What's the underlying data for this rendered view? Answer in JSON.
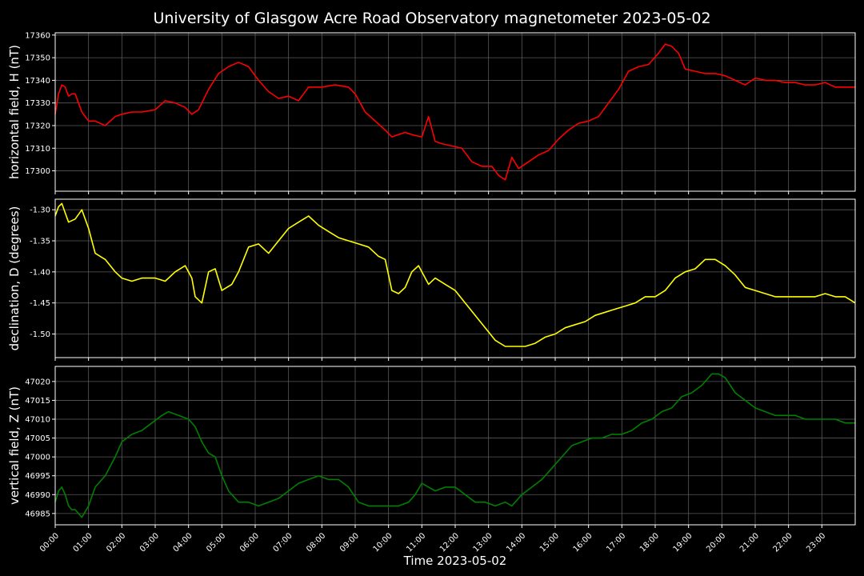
{
  "chart_data": {
    "type": "line",
    "title": "University of Glasgow Acre Road Observatory magnetometer 2023-05-02",
    "xlabel": "Time 2023-05-02",
    "x_unit": "hours",
    "x_tick_labels": [
      "00:00",
      "01:00",
      "02:00",
      "03:00",
      "04:00",
      "05:00",
      "06:00",
      "07:00",
      "08:00",
      "09:00",
      "10:00",
      "11:00",
      "12:00",
      "13:00",
      "14:00",
      "15:00",
      "16:00",
      "17:00",
      "18:00",
      "19:00",
      "20:00",
      "21:00",
      "22:00",
      "23:00"
    ],
    "xlim": [
      0,
      24
    ],
    "grid": true,
    "panels": [
      {
        "ylabel": "horizontal field, H (nT)",
        "color": "#ff0000",
        "ylim": [
          17291,
          17361
        ],
        "yticks": [
          17300,
          17310,
          17320,
          17330,
          17340,
          17350,
          17360
        ],
        "x": [
          0.0,
          0.1,
          0.2,
          0.3,
          0.4,
          0.5,
          0.6,
          0.8,
          1.0,
          1.2,
          1.5,
          1.8,
          2.0,
          2.3,
          2.6,
          3.0,
          3.3,
          3.6,
          3.9,
          4.1,
          4.3,
          4.6,
          4.9,
          5.2,
          5.5,
          5.8,
          6.1,
          6.4,
          6.7,
          7.0,
          7.3,
          7.6,
          8.0,
          8.4,
          8.8,
          9.0,
          9.3,
          9.6,
          9.9,
          10.1,
          10.3,
          10.5,
          10.7,
          11.0,
          11.2,
          11.4,
          11.6,
          11.9,
          12.2,
          12.5,
          12.8,
          13.1,
          13.3,
          13.5,
          13.7,
          13.9,
          14.2,
          14.5,
          14.8,
          15.1,
          15.4,
          15.7,
          16.0,
          16.3,
          16.6,
          16.9,
          17.2,
          17.5,
          17.8,
          18.1,
          18.3,
          18.5,
          18.7,
          18.9,
          19.2,
          19.5,
          19.8,
          20.1,
          20.4,
          20.7,
          21.0,
          21.3,
          21.6,
          21.9,
          22.2,
          22.5,
          22.8,
          23.1,
          23.4,
          23.7,
          24.0
        ],
        "values": [
          17325,
          17334,
          17338,
          17337,
          17333,
          17334,
          17334,
          17326,
          17322,
          17322,
          17320,
          17324,
          17325,
          17326,
          17326,
          17327,
          17331,
          17330,
          17328,
          17325,
          17327,
          17336,
          17343,
          17346,
          17348,
          17346,
          17340,
          17335,
          17332,
          17333,
          17331,
          17337,
          17337,
          17338,
          17337,
          17334,
          17326,
          17322,
          17318,
          17315,
          17316,
          17317,
          17316,
          17315,
          17324,
          17313,
          17312,
          17311,
          17310,
          17304,
          17302,
          17302,
          17298,
          17296,
          17306,
          17301,
          17304,
          17307,
          17309,
          17314,
          17318,
          17321,
          17322,
          17324,
          17330,
          17336,
          17344,
          17346,
          17347,
          17352,
          17356,
          17355,
          17352,
          17345,
          17344,
          17343,
          17343,
          17342,
          17340,
          17338,
          17341,
          17340,
          17340,
          17339,
          17339,
          17338,
          17338,
          17339,
          17337,
          17337,
          17337
        ]
      },
      {
        "ylabel": "declination, D (degrees)",
        "color": "#ffff00",
        "ylim": [
          -1.538,
          -1.283
        ],
        "yticks": [
          -1.5,
          -1.45,
          -1.4,
          -1.35,
          -1.3
        ],
        "x": [
          0.0,
          0.1,
          0.2,
          0.3,
          0.4,
          0.6,
          0.8,
          1.0,
          1.2,
          1.5,
          1.8,
          2.0,
          2.3,
          2.6,
          3.0,
          3.3,
          3.6,
          3.9,
          4.1,
          4.2,
          4.4,
          4.6,
          4.8,
          5.0,
          5.3,
          5.5,
          5.8,
          6.1,
          6.4,
          6.7,
          7.0,
          7.3,
          7.6,
          7.9,
          8.2,
          8.5,
          8.8,
          9.1,
          9.4,
          9.7,
          9.9,
          10.1,
          10.3,
          10.5,
          10.7,
          10.9,
          11.2,
          11.4,
          11.7,
          12.0,
          12.3,
          12.6,
          12.9,
          13.2,
          13.5,
          13.8,
          14.1,
          14.4,
          14.7,
          15.0,
          15.3,
          15.6,
          15.9,
          16.2,
          16.5,
          16.8,
          17.1,
          17.4,
          17.7,
          18.0,
          18.3,
          18.6,
          18.9,
          19.2,
          19.5,
          19.8,
          20.1,
          20.4,
          20.7,
          21.0,
          21.3,
          21.6,
          21.9,
          22.2,
          22.5,
          22.8,
          23.1,
          23.4,
          23.7,
          24.0
        ],
        "values": [
          -1.31,
          -1.295,
          -1.29,
          -1.305,
          -1.32,
          -1.315,
          -1.3,
          -1.33,
          -1.37,
          -1.38,
          -1.4,
          -1.41,
          -1.415,
          -1.41,
          -1.41,
          -1.415,
          -1.4,
          -1.39,
          -1.41,
          -1.44,
          -1.45,
          -1.4,
          -1.395,
          -1.43,
          -1.42,
          -1.4,
          -1.36,
          -1.355,
          -1.37,
          -1.35,
          -1.33,
          -1.32,
          -1.31,
          -1.325,
          -1.335,
          -1.345,
          -1.35,
          -1.355,
          -1.36,
          -1.375,
          -1.38,
          -1.43,
          -1.435,
          -1.425,
          -1.4,
          -1.39,
          -1.42,
          -1.41,
          -1.42,
          -1.43,
          -1.45,
          -1.47,
          -1.49,
          -1.51,
          -1.52,
          -1.52,
          -1.52,
          -1.515,
          -1.505,
          -1.5,
          -1.49,
          -1.485,
          -1.48,
          -1.47,
          -1.465,
          -1.46,
          -1.455,
          -1.45,
          -1.44,
          -1.44,
          -1.43,
          -1.41,
          -1.4,
          -1.395,
          -1.38,
          -1.38,
          -1.39,
          -1.405,
          -1.425,
          -1.43,
          -1.435,
          -1.44,
          -1.44,
          -1.44,
          -1.44,
          -1.44,
          -1.435,
          -1.44,
          -1.44,
          -1.45
        ]
      },
      {
        "ylabel": "vertical field, Z (nT)",
        "color": "#008000",
        "ylim": [
          46982,
          47024
        ],
        "yticks": [
          46985,
          46990,
          46995,
          47000,
          47005,
          47010,
          47015,
          47020
        ],
        "x": [
          0.0,
          0.1,
          0.2,
          0.3,
          0.4,
          0.5,
          0.6,
          0.8,
          1.0,
          1.2,
          1.5,
          1.8,
          2.0,
          2.3,
          2.6,
          2.9,
          3.2,
          3.4,
          3.7,
          4.0,
          4.2,
          4.4,
          4.6,
          4.8,
          5.0,
          5.2,
          5.5,
          5.8,
          6.1,
          6.4,
          6.7,
          7.0,
          7.3,
          7.6,
          7.9,
          8.2,
          8.5,
          8.8,
          9.1,
          9.4,
          9.7,
          10.0,
          10.3,
          10.6,
          10.8,
          11.0,
          11.2,
          11.4,
          11.7,
          12.0,
          12.3,
          12.6,
          12.9,
          13.2,
          13.5,
          13.7,
          14.0,
          14.3,
          14.6,
          14.9,
          15.2,
          15.5,
          15.8,
          16.1,
          16.4,
          16.7,
          17.0,
          17.3,
          17.6,
          17.9,
          18.2,
          18.5,
          18.8,
          19.1,
          19.4,
          19.7,
          19.9,
          20.1,
          20.4,
          20.7,
          21.0,
          21.3,
          21.6,
          21.9,
          22.2,
          22.5,
          22.8,
          23.1,
          23.4,
          23.7,
          24.0
        ],
        "values": [
          46988,
          46991,
          46992,
          46990,
          46987,
          46986,
          46986,
          46984,
          46987,
          46992,
          46995,
          47000,
          47004,
          47006,
          47007,
          47009,
          47011,
          47012,
          47011,
          47010,
          47008,
          47004,
          47001,
          47000,
          46995,
          46991,
          46988,
          46988,
          46987,
          46988,
          46989,
          46991,
          46993,
          46994,
          46995,
          46994,
          46994,
          46992,
          46988,
          46987,
          46987,
          46987,
          46987,
          46988,
          46990,
          46993,
          46992,
          46991,
          46992,
          46992,
          46990,
          46988,
          46988,
          46987,
          46988,
          46987,
          46990,
          46992,
          46994,
          46997,
          47000,
          47003,
          47004,
          47005,
          47005,
          47006,
          47006,
          47007,
          47009,
          47010,
          47012,
          47013,
          47016,
          47017,
          47019,
          47022,
          47022,
          47021,
          47017,
          47015,
          47013,
          47012,
          47011,
          47011,
          47011,
          47010,
          47010,
          47010,
          47010,
          47009,
          47009
        ]
      }
    ]
  }
}
